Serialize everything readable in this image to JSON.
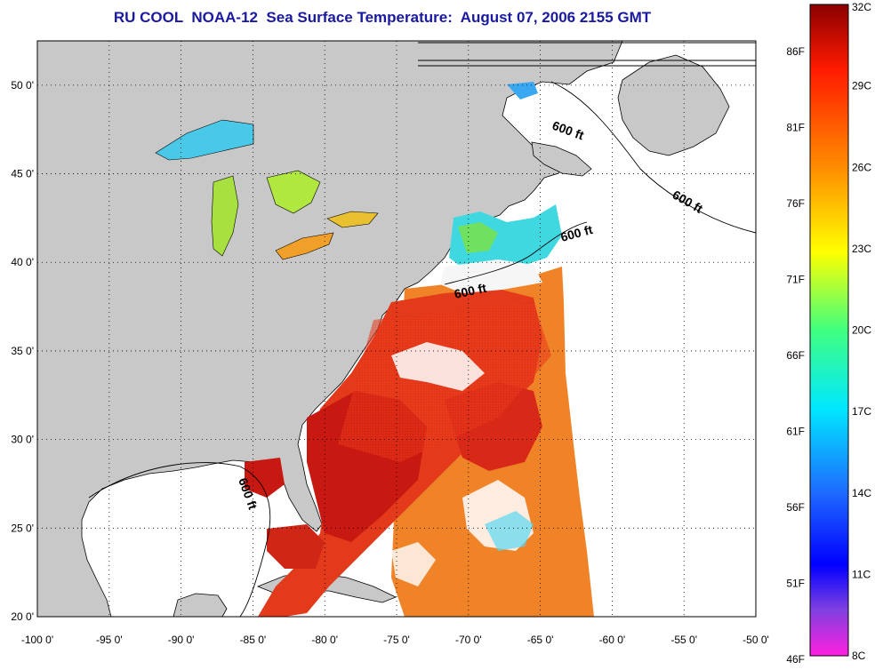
{
  "title": "RU COOL  NOAA-12  Sea Surface Temperature:  August 07, 2006 2155 GMT",
  "map": {
    "lon_range": [
      -100,
      -50
    ],
    "lat_range": [
      20,
      52.5
    ],
    "lon_ticks": [
      "-100 0'",
      "-95 0'",
      "-90 0'",
      "-85 0'",
      "-80 0'",
      "-75 0'",
      "-70 0'",
      "-65 0'",
      "-60 0'",
      "-55 0'",
      "-50 0'"
    ],
    "lat_ticks": [
      "50 0'",
      "45 0'",
      "40 0'",
      "35 0'",
      "30 0'",
      "25 0'",
      "20 0'"
    ],
    "contour_labels": [
      "600 ft",
      "600 ft",
      "600 ft",
      "600 ft",
      "600 ft"
    ],
    "colors": {
      "land": "#c8c8c8",
      "ocean_nodata": "#ffffff",
      "sst_warm": "#e8301a",
      "sst_hot": "#c41010",
      "sst_orange": "#f08020",
      "sst_cool": "#30d8e0",
      "grid": "#000000"
    }
  },
  "colorbar": {
    "celsius_labels": [
      "32C",
      "29C",
      "26C",
      "23C",
      "20C",
      "17C",
      "14C",
      "11C",
      "8C"
    ],
    "fahrenheit_labels": [
      "86F",
      "81F",
      "76F",
      "71F",
      "66F",
      "61F",
      "56F",
      "51F",
      "46F"
    ],
    "range_c": [
      8,
      32
    ]
  }
}
